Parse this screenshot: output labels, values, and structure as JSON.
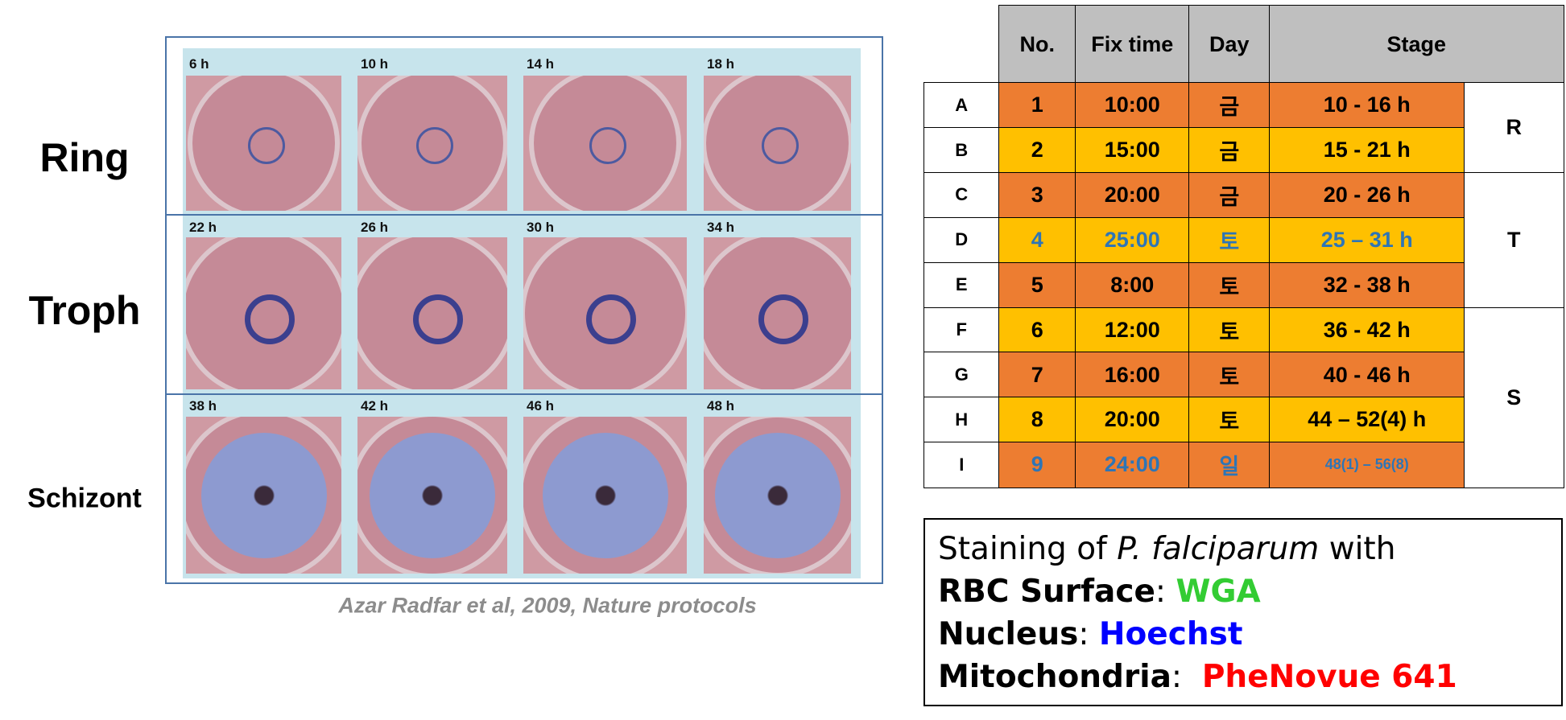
{
  "panel": {
    "row_labels": [
      "Ring",
      "Troph",
      "Schizont"
    ],
    "time_labels": [
      [
        "6 h",
        "10 h",
        "14 h",
        "18 h"
      ],
      [
        "22 h",
        "26 h",
        "30 h",
        "34 h"
      ],
      [
        "38 h",
        "42 h",
        "46 h",
        "48 h"
      ]
    ],
    "citation": "Azar Radfar et al, 2009, Nature protocols"
  },
  "table": {
    "header": [
      "No.",
      "Fix time",
      "Day",
      "Stage"
    ],
    "rows": [
      [
        "A",
        "1",
        "10:00",
        "금",
        "10 - 16 h"
      ],
      [
        "B",
        "2",
        "15:00",
        "금",
        "15 - 21 h"
      ],
      [
        "C",
        "3",
        "20:00",
        "금",
        "20 - 26 h"
      ],
      [
        "D",
        "4",
        "25:00",
        "토",
        "25 – 31 h"
      ],
      [
        "E",
        "5",
        "8:00",
        "토",
        "32 - 38 h"
      ],
      [
        "F",
        "6",
        "12:00",
        "토",
        "36 - 42 h"
      ],
      [
        "G",
        "7",
        "16:00",
        "토",
        "40 - 46 h"
      ],
      [
        "H",
        "8",
        "20:00",
        "토",
        "44 – 52(4) h"
      ],
      [
        "I",
        "9",
        "24:00",
        "일",
        "48(1) – 56(8)"
      ]
    ],
    "groups": [
      "R",
      "T",
      "S"
    ]
  },
  "staining": {
    "intro": [
      "Staining of ",
      "P. falciparum",
      " with"
    ],
    "items": [
      {
        "label": "RBC Surface",
        "sep": ": ",
        "value": "WGA"
      },
      {
        "label": "Nucleus",
        "sep": ": ",
        "value": "Hoechst"
      },
      {
        "label": "Mitochondria",
        "sep": ":  ",
        "value": "PheNovue 641"
      }
    ]
  }
}
